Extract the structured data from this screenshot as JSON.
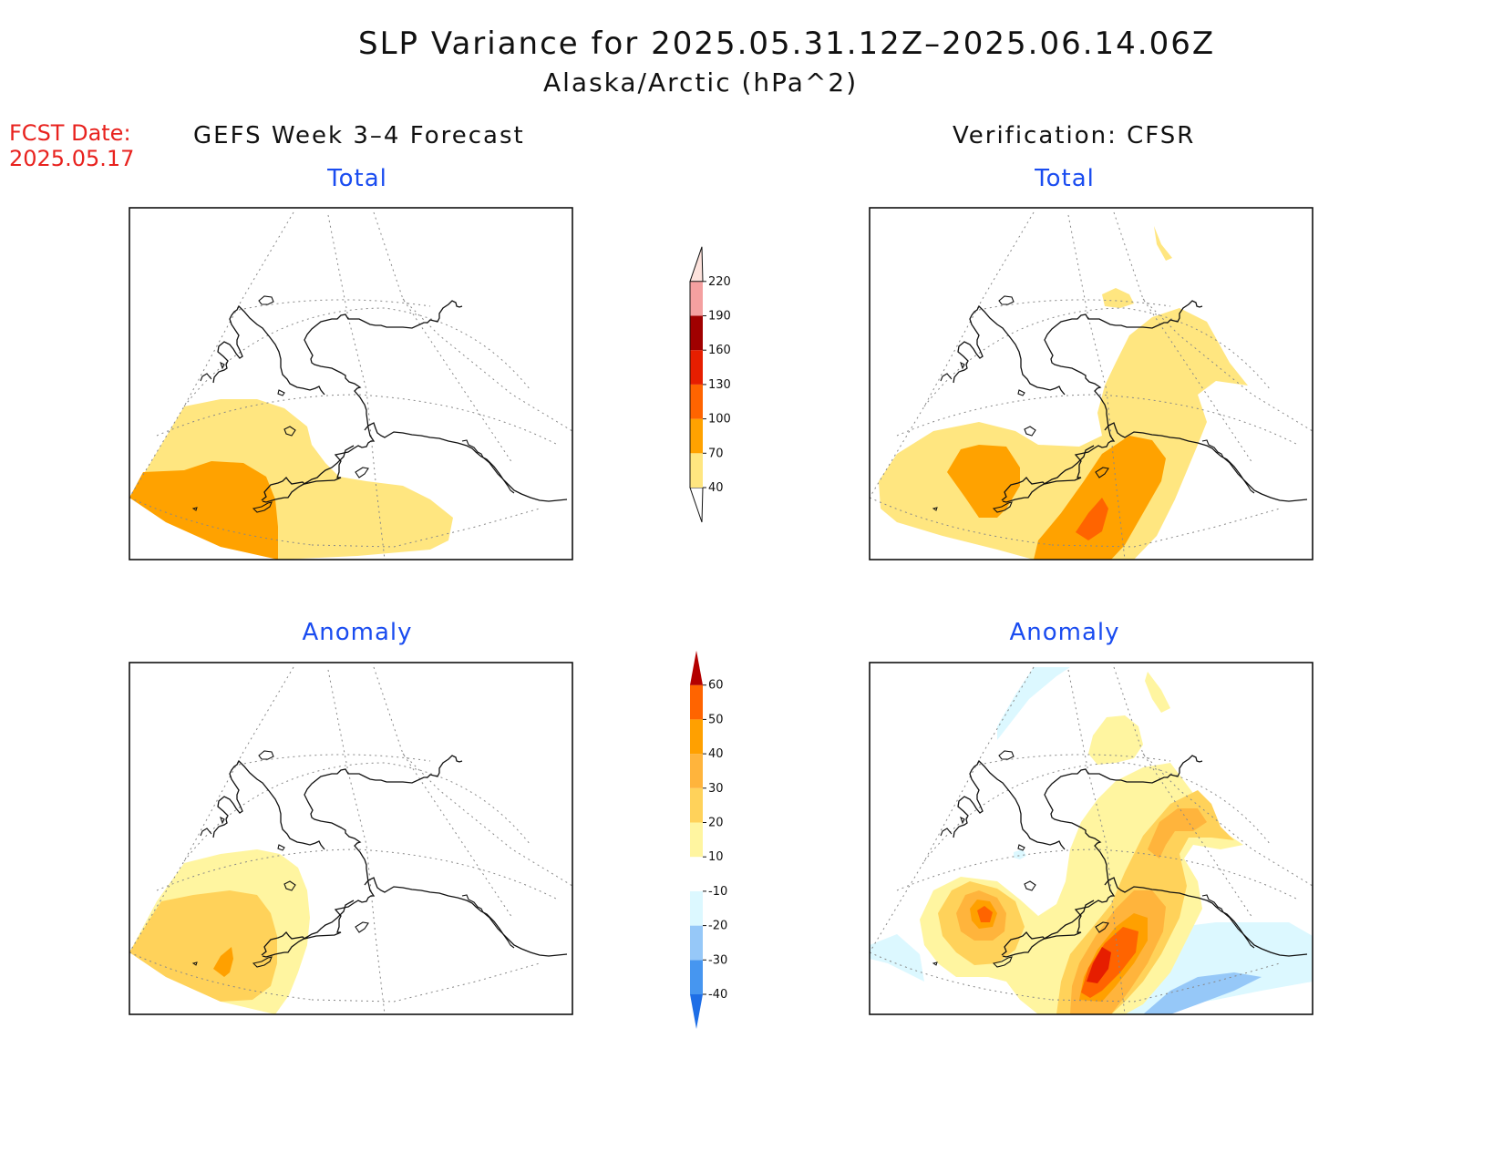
{
  "title": {
    "main": "SLP Variance for 2025.05.31.12Z–2025.06.14.06Z",
    "sub": "Alaska/Arctic (hPa^2)"
  },
  "forecast_date": {
    "label": "FCST Date:",
    "value": "2025.05.17"
  },
  "columns": {
    "left": "GEFS Week 3–4 Forecast",
    "right": "Verification: CFSR"
  },
  "panels": [
    {
      "id": "fcst-total",
      "label": "Total"
    },
    {
      "id": "verif-total",
      "label": "Total"
    },
    {
      "id": "fcst-anomaly",
      "label": "Anomaly"
    },
    {
      "id": "verif-anomaly",
      "label": "Anomaly"
    }
  ],
  "colorbars": {
    "total": {
      "levels": [
        "40",
        "70",
        "100",
        "130",
        "160",
        "190",
        "220"
      ],
      "colors": [
        "#ffe680",
        "#ffa200",
        "#ff6400",
        "#e61e00",
        "#a00000",
        "#f4a0a0",
        "#fde2dc"
      ]
    },
    "anomaly": {
      "levels": [
        "-40",
        "-30",
        "-20",
        "-10",
        "10",
        "20",
        "30",
        "40",
        "50",
        "60"
      ],
      "colors": [
        "#1e6ee6",
        "#4696f0",
        "#96c8f8",
        "#dcf8ff",
        "#ffffff",
        "#fff5a0",
        "#ffd25a",
        "#ffb43c",
        "#ffa000",
        "#ff6400",
        "#e61e00",
        "#b40000"
      ]
    }
  },
  "shading_colors": {
    "total_40_70": "#ffe680",
    "total_70_100": "#ffa200",
    "total_100_130": "#ff6400",
    "anom_10_20": "#fff5a0",
    "anom_20_30": "#ffd25a",
    "anom_30_40": "#ffb43c",
    "anom_40_50": "#ffa000",
    "anom_50_60": "#ff6400",
    "anom_gt60": "#e61e00",
    "anom_m10_m20": "#dcf8ff",
    "anom_m20_m30": "#96c8f8"
  }
}
